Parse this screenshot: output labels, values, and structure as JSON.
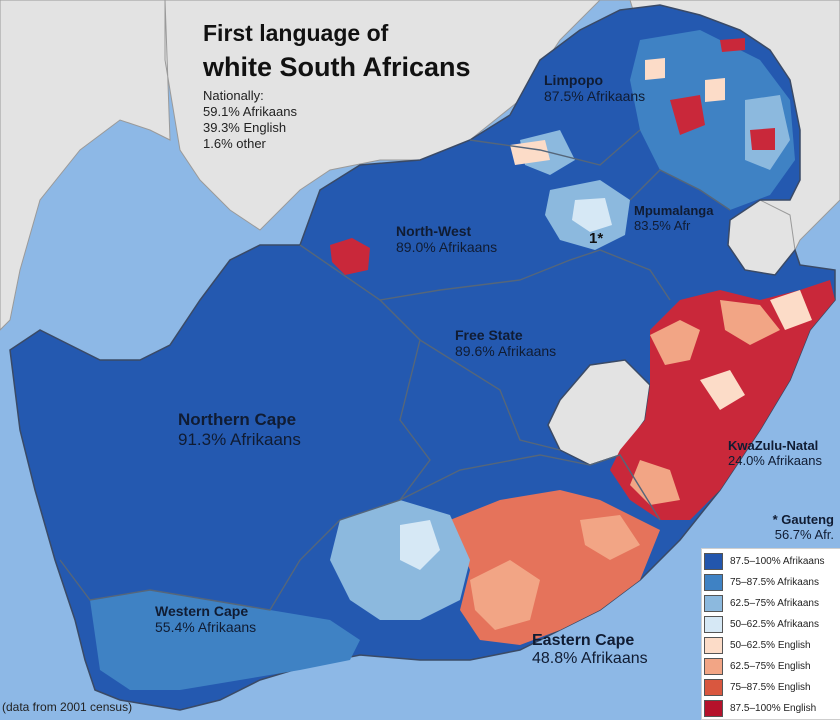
{
  "title": {
    "line1": "First language of",
    "line2": "white South Africans"
  },
  "national": {
    "heading": "Nationally:",
    "lines": [
      "59.1% Afrikaans",
      "39.3% English",
      "1.6% other"
    ]
  },
  "provinces": {
    "limpopo": {
      "name": "Limpopo",
      "value": "87.5% Afrikaans"
    },
    "mpumalanga": {
      "name": "Mpumalanga",
      "value": "83.5% Afr"
    },
    "north_west": {
      "name": "North-West",
      "value": "89.0% Afrikaans"
    },
    "free_state": {
      "name": "Free State",
      "value": "89.6% Afrikaans"
    },
    "northern_cape": {
      "name": "Northern Cape",
      "value": "91.3% Afrikaans"
    },
    "kwazulu_natal": {
      "name": "KwaZulu-Natal",
      "value": "24.0% Afrikaans"
    },
    "western_cape": {
      "name": "Western Cape",
      "value": "55.4% Afrikaans"
    },
    "eastern_cape": {
      "name": "Eastern Cape",
      "value": "48.8% Afrikaans"
    },
    "gauteng": {
      "name": "* Gauteng",
      "value": "56.7% Afr.",
      "marker": "1*"
    }
  },
  "legend": [
    {
      "label": "87.5–100% Afrikaans",
      "color": "#2356ad"
    },
    {
      "label": "75–87.5% Afrikaans",
      "color": "#3f82c4"
    },
    {
      "label": "62.5–75% Afrikaans",
      "color": "#8cb9de"
    },
    {
      "label": "50–62.5% Afrikaans",
      "color": "#d6e8f5"
    },
    {
      "label": "50–62.5% English",
      "color": "#fcdcc8"
    },
    {
      "label": "62.5–75% English",
      "color": "#f2a585"
    },
    {
      "label": "75–87.5% English",
      "color": "#d9573f"
    },
    {
      "label": "87.5–100% English",
      "color": "#b5122b"
    }
  ],
  "footnote": "(data from 2001 census)",
  "colors": {
    "ocean": "#8db8e6",
    "neighbor_land": "#e5e5e5",
    "border": "#55667a"
  }
}
